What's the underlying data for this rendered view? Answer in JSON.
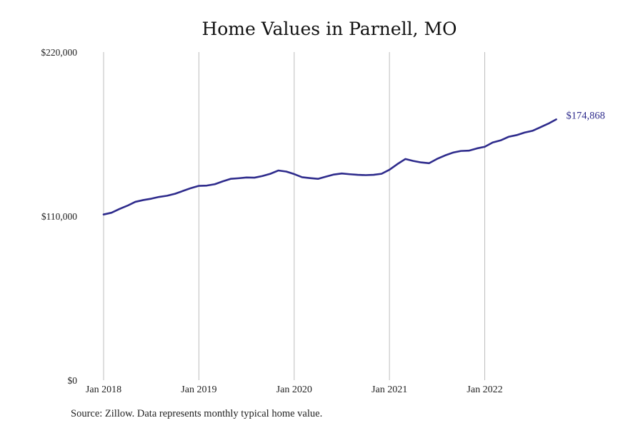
{
  "chart_data": {
    "type": "line",
    "title": "Home Values in Parnell, MO",
    "xlabel": "",
    "ylabel": "",
    "source_note": "Source: Zillow. Data represents monthly typical home value.",
    "ylim": [
      0,
      220000
    ],
    "y_ticks": [
      {
        "value": 0,
        "label": "$0"
      },
      {
        "value": 110000,
        "label": "$110,000"
      },
      {
        "value": 220000,
        "label": "$220,000"
      }
    ],
    "x_ticks": [
      {
        "value": "2018-01",
        "label": "Jan 2018"
      },
      {
        "value": "2019-01",
        "label": "Jan 2019"
      },
      {
        "value": "2020-01",
        "label": "Jan 2020"
      },
      {
        "value": "2021-01",
        "label": "Jan 2021"
      },
      {
        "value": "2022-01",
        "label": "Jan 2022"
      }
    ],
    "grid": {
      "vertical": true,
      "horizontal": false
    },
    "line_color": "#2e2b8c",
    "end_label": "$174,868",
    "series": [
      {
        "x": [
          "2018-01",
          "2018-02",
          "2018-03",
          "2018-04",
          "2018-05",
          "2018-06",
          "2018-07",
          "2018-08",
          "2018-09",
          "2018-10",
          "2018-11",
          "2018-12",
          "2019-01",
          "2019-02",
          "2019-03",
          "2019-04",
          "2019-05",
          "2019-06",
          "2019-07",
          "2019-08",
          "2019-09",
          "2019-10",
          "2019-11",
          "2019-12",
          "2020-01",
          "2020-02",
          "2020-03",
          "2020-04",
          "2020-05",
          "2020-06",
          "2020-07",
          "2020-08",
          "2020-09",
          "2020-10",
          "2020-11",
          "2020-12",
          "2021-01",
          "2021-02",
          "2021-03",
          "2021-04",
          "2021-05",
          "2021-06",
          "2021-07",
          "2021-08",
          "2021-09",
          "2021-10",
          "2021-11",
          "2021-12",
          "2022-01",
          "2022-02",
          "2022-03",
          "2022-04",
          "2022-05",
          "2022-06",
          "2022-07",
          "2022-08",
          "2022-09",
          "2022-10"
        ],
        "values": [
          111100,
          112300,
          114800,
          117000,
          119600,
          120800,
          121700,
          122900,
          123700,
          125000,
          126900,
          128800,
          130300,
          130500,
          131400,
          133300,
          135000,
          135400,
          135900,
          135800,
          136900,
          138400,
          140600,
          139900,
          138200,
          136100,
          135500,
          135000,
          136500,
          137900,
          138600,
          138100,
          137700,
          137500,
          137700,
          138400,
          141100,
          144900,
          148300,
          147000,
          146000,
          145500,
          148400,
          150700,
          152600,
          153700,
          153900,
          155400,
          156500,
          159400,
          160800,
          163200,
          164300,
          166000,
          167200,
          169600,
          172000,
          174868
        ]
      }
    ]
  }
}
